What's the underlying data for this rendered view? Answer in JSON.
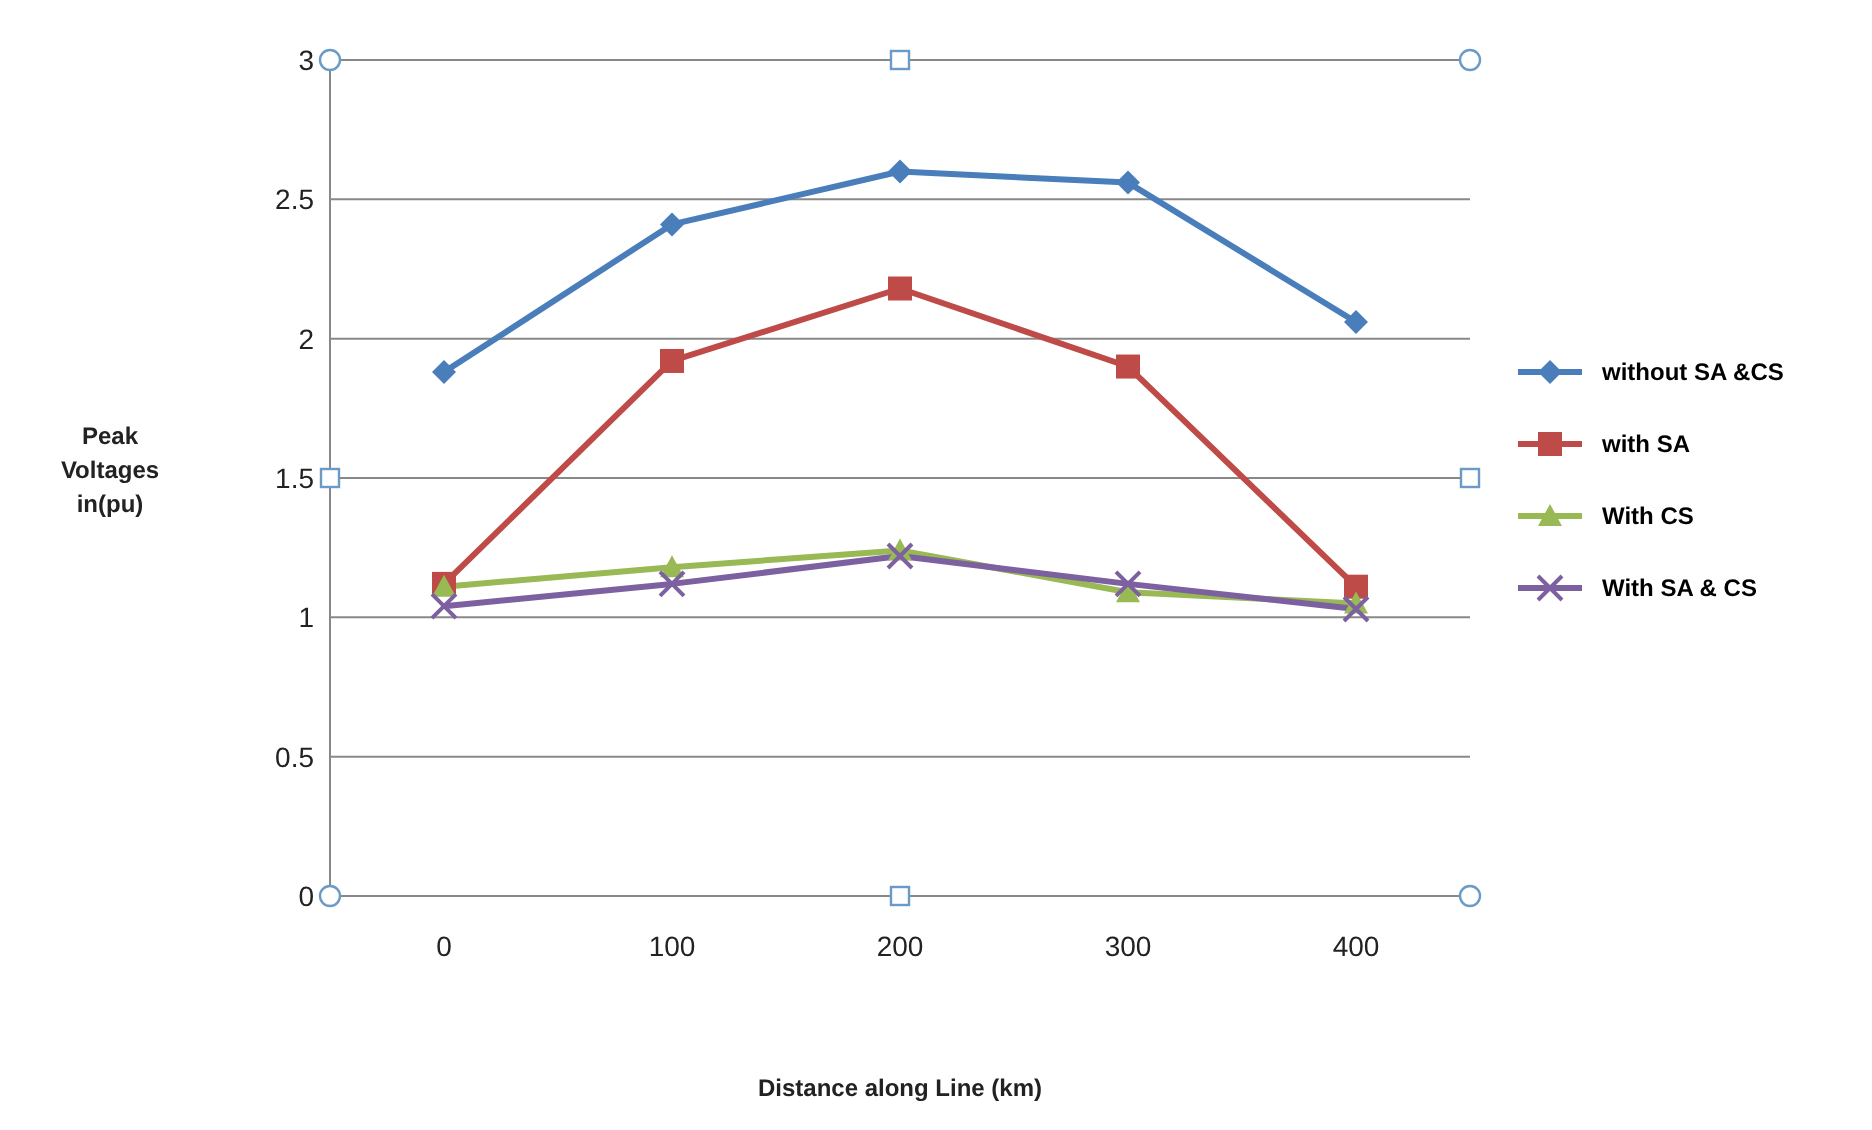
{
  "chart_data": {
    "type": "line",
    "xlabel": "Distance along Line (km)",
    "ylabel": "Peak Voltages in(pu)",
    "categories": [
      "0",
      "100",
      "200",
      "300",
      "400"
    ],
    "ylim": [
      0,
      3
    ],
    "yticks": [
      0,
      0.5,
      1,
      1.5,
      2,
      2.5,
      3
    ],
    "grid": "y",
    "legend": "right",
    "series": [
      {
        "name": "without SA &CS",
        "color": "#4a7ebb",
        "marker": "diamond",
        "values": [
          1.88,
          2.41,
          2.6,
          2.56,
          2.06
        ]
      },
      {
        "name": "with SA",
        "color": "#be4b48",
        "marker": "square",
        "values": [
          1.12,
          1.92,
          2.18,
          1.9,
          1.11
        ]
      },
      {
        "name": "With CS",
        "color": "#98b954",
        "marker": "triangle",
        "values": [
          1.11,
          1.18,
          1.24,
          1.09,
          1.05
        ]
      },
      {
        "name": "With SA & CS",
        "color": "#7d60a0",
        "marker": "cross",
        "values": [
          1.04,
          1.12,
          1.22,
          1.12,
          1.03
        ]
      }
    ]
  }
}
